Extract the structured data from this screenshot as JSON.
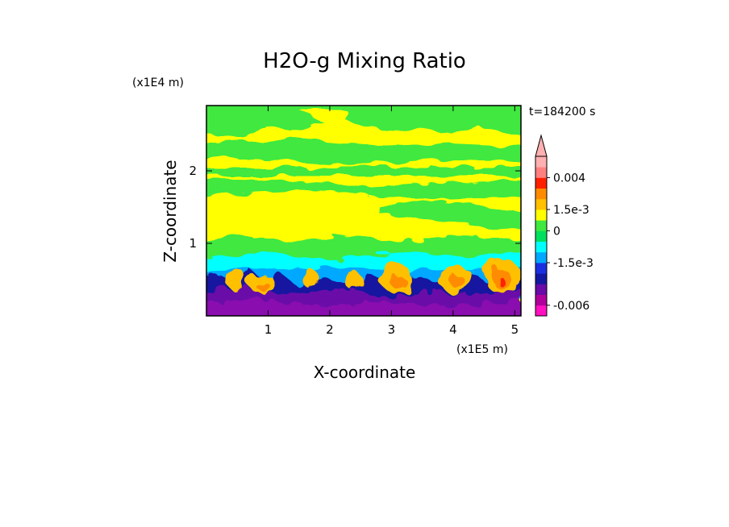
{
  "chart_data": {
    "type": "heatmap",
    "title": "H2O-g Mixing Ratio",
    "xlabel": "X-coordinate",
    "ylabel": "Z-coordinate",
    "x_unit": "(x1E5 m)",
    "y_unit": "(x1E4 m)",
    "time_label": "t=184200 s",
    "xlim": [
      0,
      5.1
    ],
    "ylim": [
      0,
      2.9
    ],
    "x_ticks": [
      1,
      2,
      3,
      4,
      5
    ],
    "y_ticks": [
      1,
      2
    ],
    "x_tick_labels": [
      "1",
      "2",
      "3",
      "4",
      "5"
    ],
    "y_tick_labels": [
      "1",
      "2"
    ],
    "colorbar": {
      "colors": [
        "#ff10c0",
        "#b0009a",
        "#6a0aa8",
        "#1418a0",
        "#1a30e0",
        "#00a8ff",
        "#00ffff",
        "#00e060",
        "#40e840",
        "#ffff00",
        "#ffc000",
        "#ff8c00",
        "#ff2000",
        "#ff8080",
        "#ffb0b0"
      ],
      "tick_labels": [
        "0.004",
        "1.5e-3",
        "0",
        "-1.5e-3",
        "-0.006"
      ],
      "tick_values": [
        0.004,
        0.0015,
        0,
        -0.0015,
        -0.006
      ],
      "extend": "max"
    },
    "field": {
      "dominant_upper": "yellow (slightly positive)",
      "upper_bands": "green (near zero)",
      "lower_layer": "cyan / blue (negative)",
      "surface_layer": "purple (strongly negative)",
      "plumes": "orange / red (positive) near x=1.0, 3.0, 4.0, 4.9"
    }
  }
}
